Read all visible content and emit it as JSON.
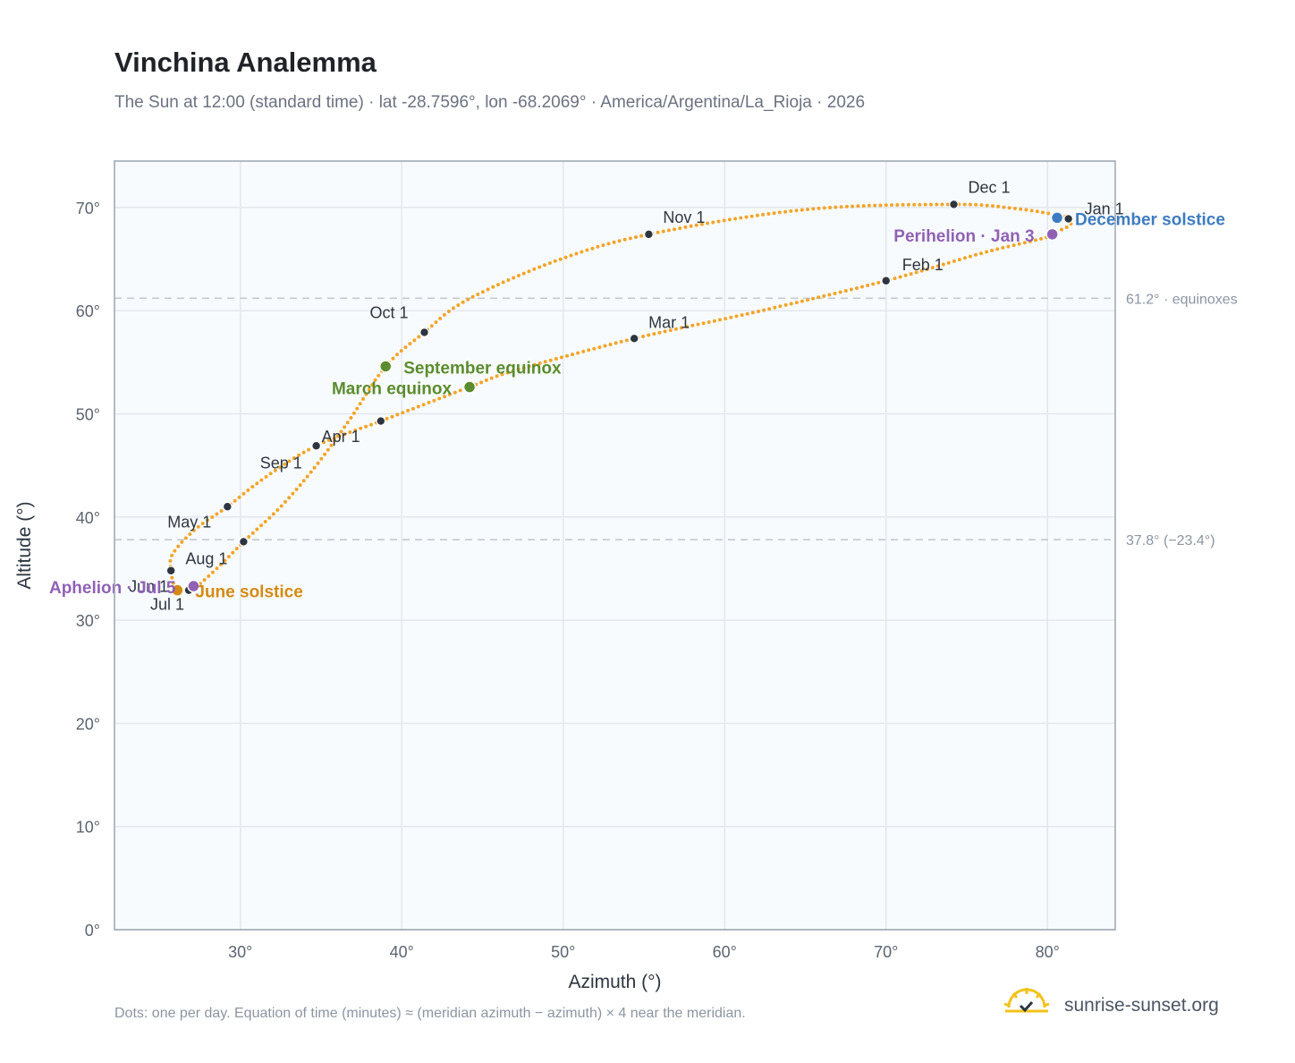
{
  "title": "Vinchina Analemma",
  "subtitle": "The Sun at 12:00 (standard time) · lat -28.7596°, lon -68.2069° · America/Argentina/La_Rioja · 2026",
  "footnote": "Dots: one per day. Equation of time (minutes) ≈ (meridian azimuth − azimuth) × 4 near the meridian.",
  "brand": "sunrise-sunset.org",
  "colors": {
    "curve": "#f2a52a",
    "month_dot": "#2d3640",
    "equinox": "#5b8c2e",
    "december_solstice": "#3e7cc0",
    "june_solstice": "#d48a12",
    "apsis": "#8f62b4",
    "plot_bg": "#f8fbfd",
    "grid": "#e3e8ee",
    "frame": "#9aa5b1",
    "refline": "#c4cad1"
  },
  "chart_data": {
    "type": "scatter",
    "xlabel": "Azimuth (°)",
    "ylabel": "Altitude (°)",
    "xlim": [
      22.2,
      84.2
    ],
    "ylim": [
      0,
      74.5
    ],
    "xticks": [
      30,
      40,
      50,
      60,
      70,
      80
    ],
    "yticks": [
      0,
      10,
      20,
      30,
      40,
      50,
      60,
      70
    ],
    "tick_suffix": "°",
    "grid": true,
    "reference_lines": [
      {
        "y": 61.2,
        "label": "61.2° · equinoxes"
      },
      {
        "y": 37.8,
        "label": "37.8° (−23.4°)"
      }
    ],
    "curve_anchors": [
      [
        80.2,
        67.4
      ],
      [
        79.7,
        67.0
      ],
      [
        76.0,
        65.6
      ],
      [
        70.0,
        62.9
      ],
      [
        62.0,
        59.9
      ],
      [
        54.4,
        57.3
      ],
      [
        47.0,
        54.2
      ],
      [
        44.2,
        52.6
      ],
      [
        38.7,
        49.3
      ],
      [
        34.7,
        46.9
      ],
      [
        31.5,
        43.8
      ],
      [
        29.2,
        41.0
      ],
      [
        27.2,
        38.8
      ],
      [
        25.8,
        36.4
      ],
      [
        25.7,
        34.8
      ],
      [
        25.9,
        33.3
      ],
      [
        26.1,
        32.9
      ],
      [
        26.8,
        32.9
      ],
      [
        27.4,
        33.4
      ],
      [
        28.8,
        35.4
      ],
      [
        30.2,
        37.6
      ],
      [
        32.5,
        41.0
      ],
      [
        34.6,
        44.8
      ],
      [
        36.8,
        49.5
      ],
      [
        39.0,
        54.6
      ],
      [
        41.4,
        57.9
      ],
      [
        44.0,
        61.0
      ],
      [
        49.5,
        64.8
      ],
      [
        55.3,
        67.4
      ],
      [
        65.0,
        69.8
      ],
      [
        74.2,
        70.3
      ],
      [
        78.0,
        69.9
      ],
      [
        80.5,
        69.3
      ],
      [
        81.4,
        68.9
      ],
      [
        81.4,
        68.3
      ],
      [
        80.8,
        67.8
      ],
      [
        80.2,
        67.4
      ]
    ],
    "month_markers": [
      {
        "label": "Jan 1",
        "az": 81.3,
        "alt": 68.9
      },
      {
        "label": "Feb 1",
        "az": 70.0,
        "alt": 62.9
      },
      {
        "label": "Mar 1",
        "az": 54.4,
        "alt": 57.3
      },
      {
        "label": "Apr 1",
        "az": 34.7,
        "alt": 46.9
      },
      {
        "label": "May 1",
        "az": 29.2,
        "alt": 41.0
      },
      {
        "label": "Jun 1",
        "az": 25.7,
        "alt": 34.8
      },
      {
        "label": "Jul 1",
        "az": 26.8,
        "alt": 32.9
      },
      {
        "label": "Aug 1",
        "az": 30.2,
        "alt": 37.6
      },
      {
        "label": "Sep 1",
        "az": 38.7,
        "alt": 49.3
      },
      {
        "label": "Oct 1",
        "az": 41.4,
        "alt": 57.9
      },
      {
        "label": "Nov 1",
        "az": 55.3,
        "alt": 67.4
      },
      {
        "label": "Dec 1",
        "az": 74.2,
        "alt": 70.3
      }
    ],
    "events": [
      {
        "label": "March equinox",
        "az": 44.2,
        "alt": 52.6,
        "kind": "equinox"
      },
      {
        "label": "September equinox",
        "az": 39.0,
        "alt": 54.6,
        "kind": "equinox"
      },
      {
        "label": "June solstice",
        "az": 26.1,
        "alt": 32.9,
        "kind": "june_solstice"
      },
      {
        "label": "December solstice",
        "az": 80.6,
        "alt": 69.0,
        "kind": "december_solstice"
      },
      {
        "label": "Aphelion · Jul 5",
        "az": 27.1,
        "alt": 33.3,
        "kind": "apsis"
      },
      {
        "label": "Perihelion · Jan 3",
        "az": 80.3,
        "alt": 67.4,
        "kind": "apsis"
      }
    ]
  }
}
